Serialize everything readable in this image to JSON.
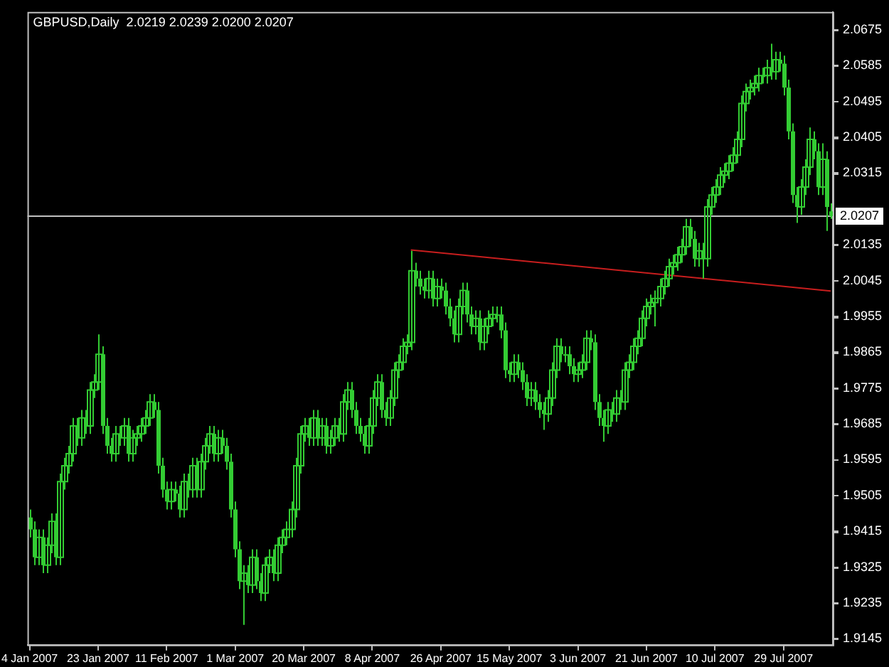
{
  "chart_data": {
    "type": "candlestick",
    "title": "GBPUSD,Daily  2.0219 2.0239 2.0200 2.0207",
    "color": "#33cc33",
    "categories": [
      "4 Jan 2007",
      null,
      null,
      null,
      null,
      null,
      null,
      null,
      null,
      null,
      null,
      null,
      null,
      null,
      null,
      null,
      "23 Jan 2007",
      null,
      null,
      null,
      null,
      null,
      null,
      null,
      null,
      null,
      null,
      null,
      null,
      null,
      null,
      null,
      "11 Feb 2007",
      null,
      null,
      null,
      null,
      null,
      null,
      null,
      null,
      null,
      null,
      null,
      null,
      null,
      null,
      null,
      "1 Mar 2007",
      null,
      null,
      null,
      null,
      null,
      null,
      null,
      null,
      null,
      null,
      null,
      null,
      null,
      null,
      null,
      "20 Mar 2007",
      null,
      null,
      null,
      null,
      null,
      null,
      null,
      null,
      null,
      null,
      null,
      null,
      null,
      null,
      null,
      "8 Apr 2007",
      null,
      null,
      null,
      null,
      null,
      null,
      null,
      null,
      null,
      null,
      null,
      null,
      null,
      null,
      null,
      "26 Apr 2007",
      null,
      null,
      null,
      null,
      null,
      null,
      null,
      null,
      null,
      null,
      null,
      null,
      null,
      null,
      null,
      "15 May 2007",
      null,
      null,
      null,
      null,
      null,
      null,
      null,
      null,
      null,
      null,
      null,
      null,
      null,
      null,
      null,
      "3 Jun 2007",
      null,
      null,
      null,
      null,
      null,
      null,
      null,
      null,
      null,
      null,
      null,
      null,
      null,
      null,
      null,
      "21 Jun 2007",
      null,
      null,
      null,
      null,
      null,
      null,
      null,
      null,
      null,
      null,
      null,
      null,
      null,
      null,
      null,
      "10 Jul 2007",
      null,
      null,
      null,
      null,
      null,
      null,
      null,
      null,
      null,
      null,
      null,
      null,
      null,
      null,
      null,
      "29 Jul 2007",
      null,
      null,
      null,
      null,
      null,
      null,
      null,
      null,
      null,
      null,
      null
    ],
    "ohlc": [
      [
        1.945,
        1.947,
        1.94,
        1.942
      ],
      [
        1.942,
        1.944,
        1.933,
        1.935
      ],
      [
        1.935,
        1.942,
        1.933,
        1.94
      ],
      [
        1.94,
        1.942,
        1.931,
        1.933
      ],
      [
        1.933,
        1.94,
        1.931,
        1.938
      ],
      [
        1.938,
        1.946,
        1.936,
        1.944
      ],
      [
        1.944,
        1.946,
        1.933,
        1.935
      ],
      [
        1.935,
        1.956,
        1.933,
        1.954
      ],
      [
        1.954,
        1.96,
        1.952,
        1.958
      ],
      [
        1.958,
        1.963,
        1.956,
        1.961
      ],
      [
        1.961,
        1.97,
        1.959,
        1.968
      ],
      [
        1.968,
        1.97,
        1.963,
        1.965
      ],
      [
        1.965,
        1.972,
        1.963,
        1.97
      ],
      [
        1.97,
        1.972,
        1.966,
        1.968
      ],
      [
        1.968,
        1.979,
        1.966,
        1.977
      ],
      [
        1.977,
        1.981,
        1.975,
        1.979
      ],
      [
        1.979,
        1.991,
        1.977,
        1.986
      ],
      [
        1.986,
        1.988,
        1.966,
        1.968
      ],
      [
        1.968,
        1.97,
        1.961,
        1.963
      ],
      [
        1.963,
        1.965,
        1.959,
        1.961
      ],
      [
        1.961,
        1.968,
        1.959,
        1.966
      ],
      [
        1.966,
        1.968,
        1.963,
        1.965
      ],
      [
        1.965,
        1.97,
        1.963,
        1.968
      ],
      [
        1.968,
        1.97,
        1.959,
        1.961
      ],
      [
        1.961,
        1.967,
        1.959,
        1.965
      ],
      [
        1.965,
        1.968,
        1.963,
        1.966
      ],
      [
        1.966,
        1.97,
        1.964,
        1.968
      ],
      [
        1.968,
        1.972,
        1.966,
        1.97
      ],
      [
        1.97,
        1.976,
        1.968,
        1.974
      ],
      [
        1.974,
        1.976,
        1.97,
        1.972
      ],
      [
        1.972,
        1.974,
        1.956,
        1.958
      ],
      [
        1.958,
        1.96,
        1.95,
        1.952
      ],
      [
        1.952,
        1.954,
        1.947,
        1.949
      ],
      [
        1.949,
        1.954,
        1.947,
        1.952
      ],
      [
        1.952,
        1.954,
        1.949,
        1.951
      ],
      [
        1.951,
        1.953,
        1.945,
        1.947
      ],
      [
        1.947,
        1.956,
        1.945,
        1.954
      ],
      [
        1.954,
        1.956,
        1.95,
        1.952
      ],
      [
        1.952,
        1.96,
        1.95,
        1.958
      ],
      [
        1.958,
        1.96,
        1.95,
        1.952
      ],
      [
        1.952,
        1.961,
        1.95,
        1.959
      ],
      [
        1.959,
        1.965,
        1.957,
        1.963
      ],
      [
        1.963,
        1.968,
        1.961,
        1.966
      ],
      [
        1.966,
        1.968,
        1.959,
        1.961
      ],
      [
        1.961,
        1.967,
        1.959,
        1.965
      ],
      [
        1.965,
        1.967,
        1.961,
        1.963
      ],
      [
        1.963,
        1.965,
        1.957,
        1.959
      ],
      [
        1.959,
        1.961,
        1.945,
        1.947
      ],
      [
        1.947,
        1.949,
        1.935,
        1.937
      ],
      [
        1.937,
        1.939,
        1.927,
        1.929
      ],
      [
        1.929,
        1.933,
        1.918,
        1.931
      ],
      [
        1.931,
        1.933,
        1.926,
        1.928
      ],
      [
        1.928,
        1.937,
        1.926,
        1.935
      ],
      [
        1.935,
        1.937,
        1.927,
        1.929
      ],
      [
        1.929,
        1.931,
        1.924,
        1.926
      ],
      [
        1.926,
        1.935,
        1.924,
        1.933
      ],
      [
        1.933,
        1.937,
        1.931,
        1.935
      ],
      [
        1.935,
        1.937,
        1.929,
        1.931
      ],
      [
        1.931,
        1.94,
        1.929,
        1.938
      ],
      [
        1.938,
        1.942,
        1.936,
        1.94
      ],
      [
        1.94,
        1.944,
        1.938,
        1.942
      ],
      [
        1.942,
        1.949,
        1.94,
        1.947
      ],
      [
        1.947,
        1.96,
        1.945,
        1.958
      ],
      [
        1.958,
        1.968,
        1.956,
        1.966
      ],
      [
        1.966,
        1.97,
        1.964,
        1.968
      ],
      [
        1.968,
        1.97,
        1.963,
        1.965
      ],
      [
        1.965,
        1.972,
        1.963,
        1.97
      ],
      [
        1.97,
        1.972,
        1.963,
        1.965
      ],
      [
        1.965,
        1.97,
        1.963,
        1.968
      ],
      [
        1.968,
        1.97,
        1.961,
        1.963
      ],
      [
        1.963,
        1.967,
        1.961,
        1.965
      ],
      [
        1.965,
        1.97,
        1.963,
        1.968
      ],
      [
        1.968,
        1.97,
        1.964,
        1.966
      ],
      [
        1.966,
        1.976,
        1.964,
        1.974
      ],
      [
        1.974,
        1.979,
        1.972,
        1.977
      ],
      [
        1.977,
        1.979,
        1.97,
        1.972
      ],
      [
        1.972,
        1.974,
        1.966,
        1.968
      ],
      [
        1.968,
        1.97,
        1.964,
        1.966
      ],
      [
        1.966,
        1.968,
        1.961,
        1.963
      ],
      [
        1.963,
        1.97,
        1.961,
        1.968
      ],
      [
        1.968,
        1.977,
        1.966,
        1.975
      ],
      [
        1.975,
        1.981,
        1.973,
        1.979
      ],
      [
        1.979,
        1.981,
        1.97,
        1.972
      ],
      [
        1.972,
        1.974,
        1.968,
        1.97
      ],
      [
        1.97,
        1.977,
        1.968,
        1.975
      ],
      [
        1.975,
        1.984,
        1.973,
        1.982
      ],
      [
        1.982,
        1.986,
        1.98,
        1.984
      ],
      [
        1.984,
        1.99,
        1.982,
        1.988
      ],
      [
        1.988,
        1.991,
        1.986,
        1.989
      ],
      [
        1.989,
        2.012,
        1.987,
        2.007
      ],
      [
        2.007,
        2.009,
        2.003,
        2.005
      ],
      [
        2.005,
        2.007,
        2.001,
        2.003
      ],
      [
        2.003,
        2.005,
        2.0,
        2.002
      ],
      [
        2.002,
        2.007,
        2.0,
        2.005
      ],
      [
        2.005,
        2.007,
        1.998,
        2.0
      ],
      [
        2.0,
        2.005,
        1.998,
        2.003
      ],
      [
        2.003,
        2.005,
        2.0,
        2.002
      ],
      [
        2.002,
        2.004,
        1.996,
        1.998
      ],
      [
        1.998,
        2.0,
        1.993,
        1.995
      ],
      [
        1.995,
        1.997,
        1.989,
        1.991
      ],
      [
        1.991,
        2.0,
        1.989,
        1.998
      ],
      [
        1.998,
        2.004,
        1.996,
        2.002
      ],
      [
        2.002,
        2.004,
        1.994,
        1.996
      ],
      [
        1.996,
        1.998,
        1.991,
        1.993
      ],
      [
        1.993,
        1.997,
        1.991,
        1.995
      ],
      [
        1.995,
        1.997,
        1.987,
        1.989
      ],
      [
        1.989,
        1.995,
        1.987,
        1.993
      ],
      [
        1.993,
        1.997,
        1.991,
        1.995
      ],
      [
        1.995,
        1.998,
        1.993,
        1.996
      ],
      [
        1.996,
        1.998,
        1.994,
        1.996
      ],
      [
        1.996,
        1.998,
        1.99,
        1.992
      ],
      [
        1.992,
        1.994,
        1.98,
        1.982
      ],
      [
        1.982,
        1.984,
        1.979,
        1.981
      ],
      [
        1.981,
        1.986,
        1.979,
        1.984
      ],
      [
        1.984,
        1.986,
        1.98,
        1.982
      ],
      [
        1.982,
        1.984,
        1.977,
        1.979
      ],
      [
        1.979,
        1.981,
        1.973,
        1.975
      ],
      [
        1.975,
        1.979,
        1.973,
        1.977
      ],
      [
        1.977,
        1.979,
        1.972,
        1.974
      ],
      [
        1.974,
        1.976,
        1.97,
        1.972
      ],
      [
        1.972,
        1.974,
        1.967,
        1.971
      ],
      [
        1.971,
        1.977,
        1.969,
        1.975
      ],
      [
        1.975,
        1.984,
        1.973,
        1.982
      ],
      [
        1.982,
        1.99,
        1.98,
        1.988
      ],
      [
        1.988,
        1.99,
        1.984,
        1.986
      ],
      [
        1.986,
        1.988,
        1.984,
        1.986
      ],
      [
        1.986,
        1.988,
        1.981,
        1.983
      ],
      [
        1.983,
        1.985,
        1.979,
        1.981
      ],
      [
        1.981,
        1.984,
        1.979,
        1.982
      ],
      [
        1.982,
        1.986,
        1.98,
        1.984
      ],
      [
        1.984,
        1.992,
        1.982,
        1.99
      ],
      [
        1.99,
        1.992,
        1.987,
        1.989
      ],
      [
        1.989,
        1.991,
        1.972,
        1.974
      ],
      [
        1.974,
        1.976,
        1.968,
        1.97
      ],
      [
        1.97,
        1.972,
        1.964,
        1.968
      ],
      [
        1.968,
        1.974,
        1.966,
        1.972
      ],
      [
        1.972,
        1.974,
        1.969,
        1.971
      ],
      [
        1.971,
        1.977,
        1.969,
        1.975
      ],
      [
        1.975,
        1.977,
        1.972,
        1.974
      ],
      [
        1.974,
        1.984,
        1.972,
        1.982
      ],
      [
        1.982,
        1.986,
        1.98,
        1.984
      ],
      [
        1.984,
        1.99,
        1.982,
        1.988
      ],
      [
        1.988,
        1.992,
        1.986,
        1.99
      ],
      [
        1.99,
        1.997,
        1.988,
        1.995
      ],
      [
        1.995,
        2.0,
        1.993,
        1.998
      ],
      [
        1.998,
        2.001,
        1.996,
        1.999
      ],
      [
        1.999,
        2.002,
        1.993,
        2.0
      ],
      [
        2.0,
        2.005,
        1.998,
        2.003
      ],
      [
        2.003,
        2.007,
        2.001,
        2.005
      ],
      [
        2.005,
        2.01,
        2.003,
        2.008
      ],
      [
        2.008,
        2.011,
        2.006,
        2.009
      ],
      [
        2.009,
        2.013,
        2.007,
        2.011
      ],
      [
        2.011,
        2.015,
        2.009,
        2.013
      ],
      [
        2.013,
        2.02,
        2.011,
        2.018
      ],
      [
        2.018,
        2.02,
        2.013,
        2.015
      ],
      [
        2.015,
        2.017,
        2.008,
        2.01
      ],
      [
        2.01,
        2.014,
        2.008,
        2.012
      ],
      [
        2.012,
        2.014,
        2.005,
        2.01
      ],
      [
        2.01,
        2.025,
        2.008,
        2.023
      ],
      [
        2.023,
        2.028,
        2.021,
        2.026
      ],
      [
        2.026,
        2.03,
        2.024,
        2.028
      ],
      [
        2.028,
        2.033,
        2.026,
        2.031
      ],
      [
        2.031,
        2.034,
        2.029,
        2.032
      ],
      [
        2.032,
        2.036,
        2.03,
        2.034
      ],
      [
        2.034,
        2.038,
        2.032,
        2.036
      ],
      [
        2.036,
        2.042,
        2.034,
        2.04
      ],
      [
        2.04,
        2.051,
        2.038,
        2.049
      ],
      [
        2.049,
        2.054,
        2.047,
        2.052
      ],
      [
        2.052,
        2.055,
        2.05,
        2.053
      ],
      [
        2.053,
        2.056,
        2.051,
        2.054
      ],
      [
        2.054,
        2.058,
        2.052,
        2.056
      ],
      [
        2.056,
        2.058,
        2.054,
        2.056
      ],
      [
        2.056,
        2.06,
        2.054,
        2.058
      ],
      [
        2.058,
        2.064,
        2.055,
        2.057
      ],
      [
        2.057,
        2.062,
        2.055,
        2.06
      ],
      [
        2.06,
        2.062,
        2.057,
        2.059
      ],
      [
        2.059,
        2.061,
        2.051,
        2.053
      ],
      [
        2.053,
        2.055,
        2.04,
        2.042
      ],
      [
        2.042,
        2.044,
        2.024,
        2.026
      ],
      [
        2.026,
        2.028,
        2.019,
        2.023
      ],
      [
        2.023,
        2.03,
        2.021,
        2.028
      ],
      [
        2.028,
        2.035,
        2.026,
        2.033
      ],
      [
        2.033,
        2.043,
        2.031,
        2.04
      ],
      [
        2.04,
        2.042,
        2.035,
        2.037
      ],
      [
        2.037,
        2.039,
        2.026,
        2.028
      ],
      [
        2.028,
        2.039,
        2.026,
        2.035
      ],
      [
        2.035,
        2.037,
        2.017,
        2.023
      ],
      [
        2.0219,
        2.0239,
        2.02,
        2.0207
      ]
    ],
    "series": [
      {
        "type": "line",
        "color": "#c81e1e",
        "values": [
          null,
          null,
          null,
          null,
          null,
          null,
          null,
          null,
          null,
          null,
          null,
          null,
          null,
          null,
          null,
          null,
          null,
          null,
          null,
          null,
          null,
          null,
          null,
          null,
          null,
          null,
          null,
          null,
          null,
          null,
          null,
          null,
          null,
          null,
          null,
          null,
          null,
          null,
          null,
          null,
          null,
          null,
          null,
          null,
          null,
          null,
          null,
          null,
          null,
          null,
          null,
          null,
          null,
          null,
          null,
          null,
          null,
          null,
          null,
          null,
          null,
          null,
          null,
          null,
          null,
          null,
          null,
          null,
          null,
          null,
          null,
          null,
          null,
          null,
          null,
          null,
          null,
          null,
          null,
          null,
          null,
          null,
          null,
          null,
          null,
          null,
          null,
          null,
          null,
          2.0122,
          null,
          null,
          null,
          null,
          null,
          null,
          null,
          null,
          null,
          null,
          null,
          null,
          null,
          null,
          null,
          null,
          null,
          null,
          null,
          null,
          null,
          null,
          null,
          null,
          null,
          null,
          null,
          null,
          null,
          null,
          null,
          null,
          null,
          null,
          null,
          null,
          null,
          null,
          null,
          null,
          null,
          null,
          null,
          null,
          null,
          null,
          null,
          null,
          null,
          null,
          null,
          null,
          null,
          null,
          null,
          null,
          null,
          null,
          null,
          null,
          null,
          null,
          null,
          null,
          null,
          null,
          null,
          null,
          null,
          null,
          null,
          null,
          null,
          null,
          null,
          null,
          null,
          null,
          null,
          null,
          null,
          null,
          null,
          null,
          null,
          null,
          null,
          null,
          null,
          null,
          null,
          null,
          null,
          null,
          null,
          null,
          null,
          2.0019
        ]
      }
    ],
    "ref_lines": [
      {
        "axis": "y",
        "value": 2.0207,
        "label": "2.0207",
        "color": "#c0c0c0"
      }
    ],
    "ylim": [
      1.913,
      2.072
    ],
    "yticks": [
      2.0675,
      2.0585,
      2.0495,
      2.0405,
      2.0315,
      2.0135,
      2.0045,
      1.9955,
      1.9865,
      1.9775,
      1.9685,
      1.9595,
      1.9505,
      1.9415,
      1.9325,
      1.9235,
      1.9145
    ]
  }
}
